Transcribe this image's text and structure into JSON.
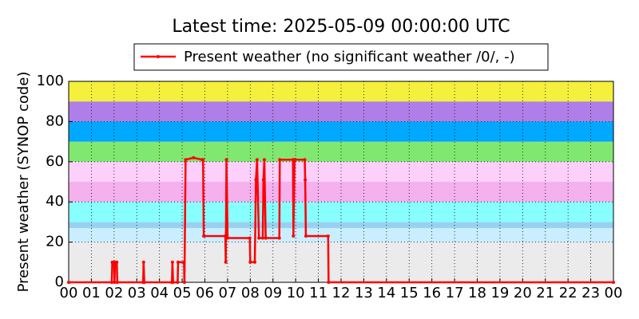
{
  "chart_data": {
    "type": "line",
    "title": "Latest time: 2025-05-09 00:00:00 UTC",
    "y_label": "Present weather (SYNOP code)",
    "legend_position": "top",
    "grid": true,
    "xlim": [
      0,
      24
    ],
    "xticks": [
      {
        "value": 0,
        "label": "00"
      },
      {
        "value": 1,
        "label": "01"
      },
      {
        "value": 2,
        "label": "02"
      },
      {
        "value": 3,
        "label": "03"
      },
      {
        "value": 4,
        "label": "04"
      },
      {
        "value": 5,
        "label": "05"
      },
      {
        "value": 6,
        "label": "06"
      },
      {
        "value": 7,
        "label": "07"
      },
      {
        "value": 8,
        "label": "08"
      },
      {
        "value": 9,
        "label": "09"
      },
      {
        "value": 10,
        "label": "10"
      },
      {
        "value": 11,
        "label": "11"
      },
      {
        "value": 12,
        "label": "12"
      },
      {
        "value": 13,
        "label": "13"
      },
      {
        "value": 14,
        "label": "14"
      },
      {
        "value": 15,
        "label": "15"
      },
      {
        "value": 16,
        "label": "16"
      },
      {
        "value": 17,
        "label": "17"
      },
      {
        "value": 18,
        "label": "18"
      },
      {
        "value": 19,
        "label": "19"
      },
      {
        "value": 20,
        "label": "20"
      },
      {
        "value": 21,
        "label": "21"
      },
      {
        "value": 22,
        "label": "22"
      },
      {
        "value": 23,
        "label": "23"
      },
      {
        "value": 24,
        "label": "00"
      }
    ],
    "ylim": [
      0,
      100
    ],
    "yticks": [
      0,
      20,
      40,
      60,
      80,
      100
    ],
    "bands": [
      {
        "from": 0,
        "to": 20,
        "color": "#ebebeb"
      },
      {
        "from": 20,
        "to": 27,
        "color": "#c8eeff"
      },
      {
        "from": 27,
        "to": 30,
        "color": "#99d0f0"
      },
      {
        "from": 30,
        "to": 40,
        "color": "#88ffff"
      },
      {
        "from": 40,
        "to": 50,
        "color": "#f5b0ee"
      },
      {
        "from": 50,
        "to": 60,
        "color": "#fcd0fa"
      },
      {
        "from": 60,
        "to": 70,
        "color": "#80e870"
      },
      {
        "from": 70,
        "to": 80,
        "color": "#00a8ff"
      },
      {
        "from": 80,
        "to": 90,
        "color": "#b07ee8"
      },
      {
        "from": 90,
        "to": 100,
        "color": "#f5f03c"
      }
    ],
    "x": [
      0,
      1.9,
      1.92,
      2.0,
      2.02,
      2.04,
      2.12,
      2.14,
      3.28,
      3.3,
      3.33,
      4.55,
      4.57,
      4.6,
      4.8,
      4.82,
      5.08,
      5.1,
      5.15,
      5.5,
      5.88,
      5.92,
      5.95,
      6.9,
      6.92,
      6.95,
      7.0,
      7.98,
      8.0,
      8.2,
      8.25,
      8.3,
      8.38,
      8.55,
      8.58,
      8.62,
      8.68,
      9.28,
      9.3,
      9.88,
      9.9,
      9.95,
      10.4,
      10.42,
      10.45,
      11.43,
      11.45,
      24
    ],
    "series": [
      {
        "name": "Present weather (no significant weather /0/, -)",
        "color": "#ff0000",
        "values": [
          0,
          0,
          10,
          10,
          0,
          10,
          10,
          0,
          0,
          10,
          0,
          0,
          10,
          0,
          0,
          10,
          10,
          0,
          61,
          62,
          61,
          61,
          23,
          23,
          10,
          61,
          22,
          22,
          10,
          10,
          51,
          61,
          22,
          22,
          51,
          61,
          22,
          22,
          61,
          61,
          23,
          61,
          61,
          51,
          23,
          23,
          0,
          0
        ]
      }
    ]
  }
}
